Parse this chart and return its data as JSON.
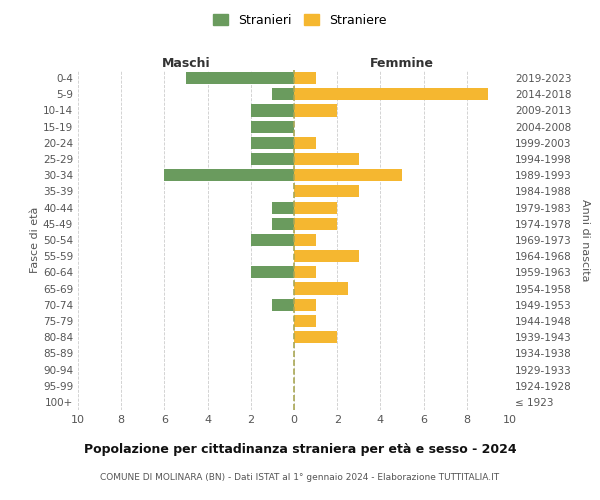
{
  "age_groups": [
    "100+",
    "95-99",
    "90-94",
    "85-89",
    "80-84",
    "75-79",
    "70-74",
    "65-69",
    "60-64",
    "55-59",
    "50-54",
    "45-49",
    "40-44",
    "35-39",
    "30-34",
    "25-29",
    "20-24",
    "15-19",
    "10-14",
    "5-9",
    "0-4"
  ],
  "birth_years": [
    "≤ 1923",
    "1924-1928",
    "1929-1933",
    "1934-1938",
    "1939-1943",
    "1944-1948",
    "1949-1953",
    "1954-1958",
    "1959-1963",
    "1964-1968",
    "1969-1973",
    "1974-1978",
    "1979-1983",
    "1984-1988",
    "1989-1993",
    "1994-1998",
    "1999-2003",
    "2004-2008",
    "2009-2013",
    "2014-2018",
    "2019-2023"
  ],
  "maschi": [
    0,
    0,
    0,
    0,
    0,
    0,
    1,
    0,
    2,
    0,
    2,
    1,
    1,
    0,
    6,
    2,
    2,
    2,
    2,
    1,
    5
  ],
  "femmine": [
    0,
    0,
    0,
    0,
    2,
    1,
    1,
    2.5,
    1,
    3,
    1,
    2,
    2,
    3,
    5,
    3,
    1,
    0,
    2,
    9,
    1
  ],
  "color_maschi": "#6a9b5e",
  "color_femmine": "#f5b730",
  "label_maschi": "Stranieri",
  "label_femmine": "Straniere",
  "header_left": "Maschi",
  "header_right": "Femmine",
  "ylabel_left": "Fasce di età",
  "ylabel_right": "Anni di nascita",
  "xlim": 10,
  "title": "Popolazione per cittadinanza straniera per età e sesso - 2024",
  "subtitle": "COMUNE DI MOLINARA (BN) - Dati ISTAT al 1° gennaio 2024 - Elaborazione TUTTITALIA.IT",
  "background_color": "#ffffff",
  "grid_color": "#cccccc",
  "text_color": "#555555"
}
